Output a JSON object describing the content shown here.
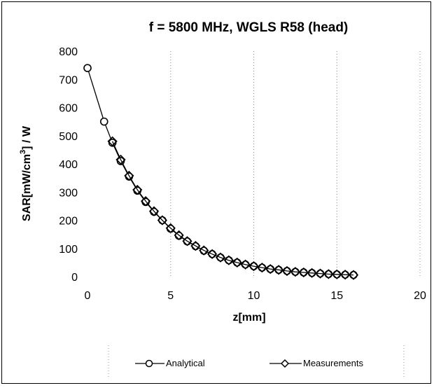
{
  "chart_data": {
    "type": "scatter",
    "title": "f = 5800 MHz, WGLS R58 (head)",
    "xlabel": "z[mm]",
    "ylabel": "SAR[mW/cm³] / W",
    "ylabel_parts": {
      "pre": "SAR[mW/cm",
      "sup": "3",
      "post": "] / W"
    },
    "xlim": [
      0,
      20
    ],
    "ylim": [
      0,
      800
    ],
    "xticks": [
      0,
      5,
      10,
      15,
      20
    ],
    "yticks": [
      0,
      100,
      200,
      300,
      400,
      500,
      600,
      700,
      800
    ],
    "grid": "vertical-dotted",
    "legend_position": "bottom",
    "series": [
      {
        "name": "Analytical",
        "marker": "circle",
        "x": [
          0,
          1,
          1.5,
          2,
          2.5,
          3,
          3.5,
          4,
          4.5,
          5,
          5.5,
          6,
          6.5,
          7,
          7.5,
          8,
          8.5,
          9,
          9.5,
          10,
          10.5,
          11,
          11.5,
          12,
          12.5,
          13,
          13.5,
          14,
          14.5,
          15,
          15.5,
          16
        ],
        "y": [
          740,
          550,
          475,
          410,
          355,
          305,
          265,
          230,
          200,
          170,
          145,
          125,
          108,
          92,
          80,
          68,
          58,
          50,
          43,
          37,
          32,
          27,
          24,
          20,
          17,
          15,
          13,
          11,
          9,
          8,
          7,
          6
        ]
      },
      {
        "name": "Measurements",
        "marker": "diamond",
        "x": [
          1.5,
          2,
          2.5,
          3,
          3.5,
          4,
          4.5,
          5,
          5.5,
          6,
          6.5,
          7,
          7.5,
          8,
          8.5,
          9,
          9.5,
          10,
          10.5,
          11,
          11.5,
          12,
          12.5,
          13,
          13.5,
          14,
          14.5,
          15,
          15.5,
          16
        ],
        "y": [
          480,
          415,
          358,
          308,
          268,
          232,
          200,
          172,
          147,
          126,
          109,
          93,
          80,
          68,
          58,
          50,
          43,
          37,
          32,
          27,
          24,
          20,
          17,
          15,
          13,
          11,
          9,
          8,
          7,
          6
        ]
      }
    ]
  }
}
